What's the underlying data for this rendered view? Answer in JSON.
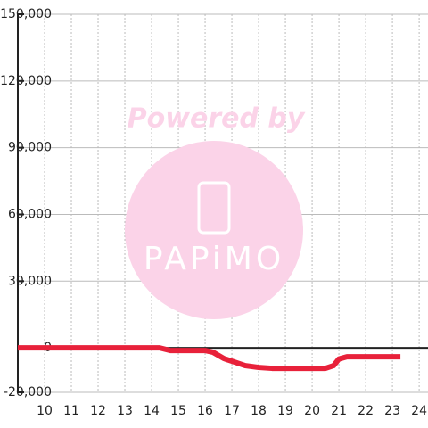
{
  "chart_data": {
    "type": "line",
    "watermark": {
      "top": "Powered by",
      "bottom": "PAPiMO"
    },
    "x": [
      9,
      14.3,
      14.7,
      16,
      16.3,
      16.7,
      17,
      17.5,
      18,
      18.5,
      20.5,
      20.8,
      21,
      21.3,
      23.3
    ],
    "series": [
      {
        "color": "#e8213a",
        "values": [
          0,
          0,
          -1200,
          -1200,
          -2000,
          -4800,
          -6000,
          -8000,
          -8800,
          -9200,
          -9200,
          -8000,
          -5000,
          -4000,
          -4000
        ]
      }
    ],
    "xlim": [
      9,
      24.33
    ],
    "xticks": [
      10,
      11,
      12,
      13,
      14,
      15,
      16,
      17,
      18,
      19,
      20,
      21,
      22,
      23,
      24
    ],
    "ylim": [
      -20000,
      150000
    ],
    "yticks": [
      {
        "value": -20000,
        "label": "-20,000"
      },
      0,
      {
        "value": 30000,
        "label": "30,000"
      },
      {
        "value": 60000,
        "label": "60,000"
      },
      {
        "value": 90000,
        "label": "90,000"
      },
      {
        "value": 120000,
        "label": "120,000"
      },
      {
        "value": 150000,
        "label": "150,000"
      }
    ],
    "grid": true
  }
}
